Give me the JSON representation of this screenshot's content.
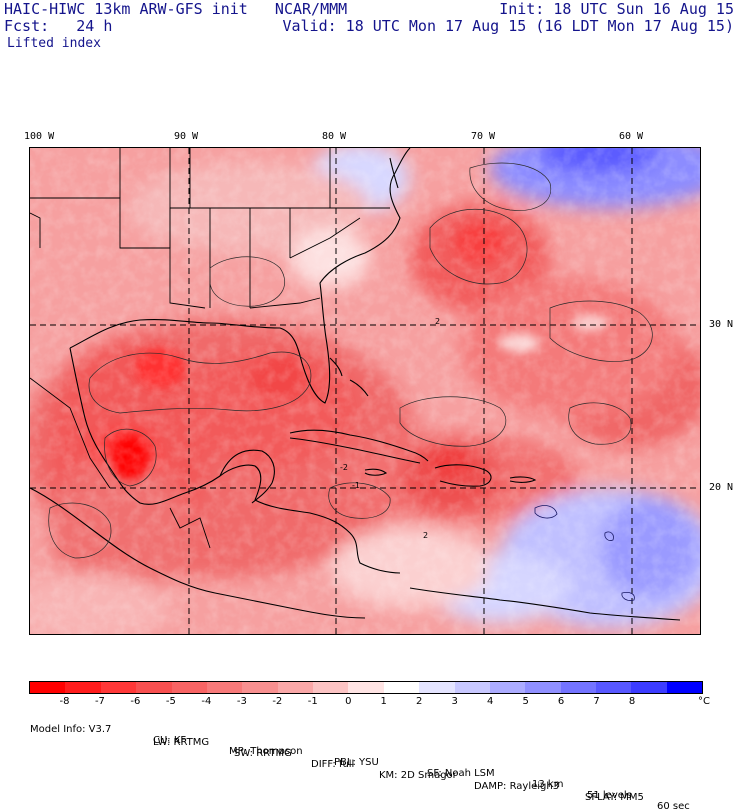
{
  "header": {
    "model_line": "HAIC-HIWC 13km ARW-GFS init   NCAR/MMM",
    "fcst_line": "Fcst:   24 h",
    "init_line": "Init: 18 UTC Sun 16 Aug 15",
    "valid_line": "Valid: 18 UTC Mon 17 Aug 15 (16 LDT Mon 17 Aug 15)",
    "field_name": "Lifted index"
  },
  "map": {
    "longitude_labels": [
      "100 W",
      "90 W",
      "80 W",
      "70 W",
      "60 W"
    ],
    "latitude_labels": [
      "30 N",
      "20 N"
    ],
    "contour_labels": [
      "2",
      "-2",
      "-1",
      "2"
    ],
    "colors": {
      "strong_negative": "#ff1e1e",
      "negative": "#f06868",
      "weak_negative": "#f8a8a8",
      "neutral": "#ffffff",
      "positive": "#c8c8ff",
      "strong_positive": "#6464ff",
      "coast_lines": "#000000",
      "contours": "#202020"
    }
  },
  "colorbar": {
    "labels": [
      "-8",
      "-7",
      "-6",
      "-5",
      "-4",
      "-3",
      "-2",
      "-1",
      "0",
      "1",
      "2",
      "3",
      "4",
      "5",
      "6",
      "7",
      "8"
    ],
    "unit": "°C",
    "colors": [
      "#ff0000",
      "#ff1c1c",
      "#ff3838",
      "#f85050",
      "#f86464",
      "#f87a7a",
      "#f89090",
      "#faa8a8",
      "#fcc4c4",
      "#ffe4e4",
      "#ffffff",
      "#e4e4ff",
      "#c8c8ff",
      "#acacff",
      "#9090ff",
      "#7474ff",
      "#5858ff",
      "#3c3cff",
      "#0000ff"
    ]
  },
  "model_info": {
    "row1": [
      "Model Info: V3.7",
      "CU: KF",
      "MP: Thompson",
      "PBL: YSU",
      "SF: Noah LSM",
      "13 km",
      "51 levels",
      "60 sec"
    ],
    "row2": [
      "LW: RRTMG",
      "SW: RRTMG",
      "DIFF: full",
      "KM: 2D Smagor",
      "DAMP: Rayleigh3",
      "SFLAY: MM5"
    ]
  }
}
